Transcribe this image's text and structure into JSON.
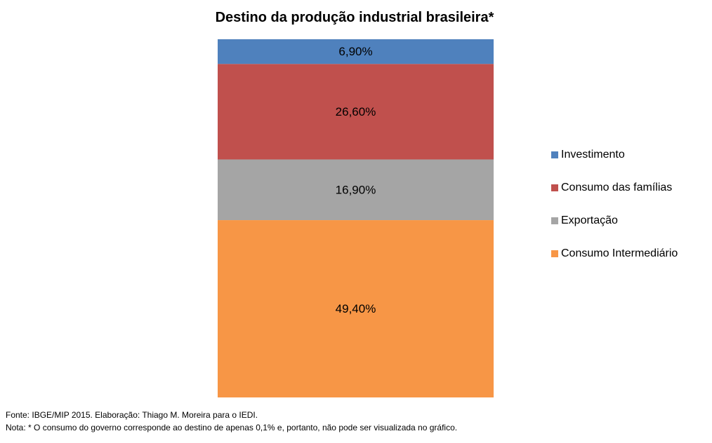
{
  "chart_data": {
    "type": "bar",
    "stacked": true,
    "title": "Destino da produção industrial brasileira*",
    "categories": [
      ""
    ],
    "series": [
      {
        "name": "Investimento",
        "values": [
          6.9
        ],
        "label": "6,90%",
        "color": "#4F81BD"
      },
      {
        "name": "Consumo das famílias",
        "values": [
          26.6
        ],
        "label": "26,60%",
        "color": "#C0504D"
      },
      {
        "name": "Exportação",
        "values": [
          16.9
        ],
        "label": "16,90%",
        "color": "#A5A5A5"
      },
      {
        "name": "Consumo Intermediário",
        "values": [
          49.4
        ],
        "label": "49,40%",
        "color": "#F79646"
      }
    ],
    "stack_order_top_to_bottom": [
      "Investimento",
      "Consumo das famílias",
      "Exportação",
      "Consumo Intermediário"
    ],
    "ylim": [
      0,
      99.8
    ],
    "axes_visible": false,
    "grid": false,
    "legend": "right"
  },
  "footer": {
    "source": "Fonte: IBGE/MIP 2015.  Elaboração: Thiago M. Moreira para o IEDI.",
    "note": "Nota: * O consumo do governo corresponde ao destino de apenas 0,1% e, portanto, não pode ser visualizada no gráfico."
  }
}
